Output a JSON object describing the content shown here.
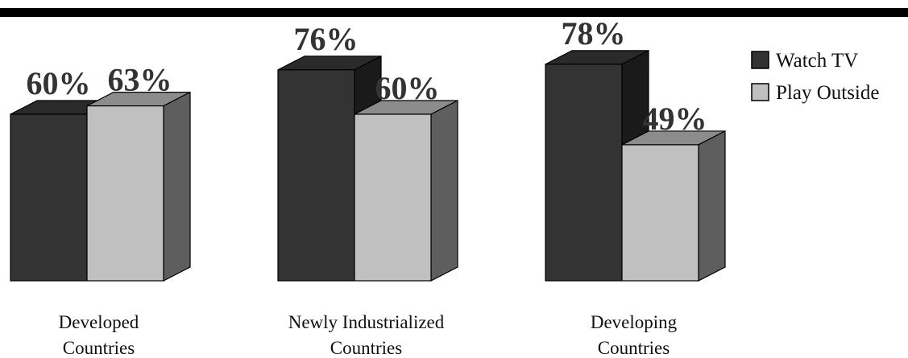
{
  "chart_data": {
    "type": "bar",
    "title": "",
    "xlabel": "",
    "ylabel": "",
    "categories": [
      [
        "Developed",
        "Countries"
      ],
      [
        "Newly Industrialized",
        "Countries"
      ],
      [
        "Developing",
        "Countries"
      ]
    ],
    "series": [
      {
        "name": "Watch TV",
        "values": [
          60,
          76,
          78
        ],
        "labels": [
          "60%",
          "76%",
          "78%"
        ]
      },
      {
        "name": "Play Outside",
        "values": [
          63,
          60,
          49
        ],
        "labels": [
          "63%",
          "60%",
          "49%"
        ]
      }
    ],
    "ylim": [
      0,
      100
    ],
    "grid": false,
    "legend": "top-right",
    "colors": {
      "series_fronts": [
        "#333333",
        "#c0c0c0"
      ],
      "series_tops": [
        "#2a2a2a",
        "#8c8c8c"
      ],
      "side_dark": "#1a1a1a",
      "side_mid": "#5e5e5e",
      "top_rule": "#000000"
    }
  }
}
